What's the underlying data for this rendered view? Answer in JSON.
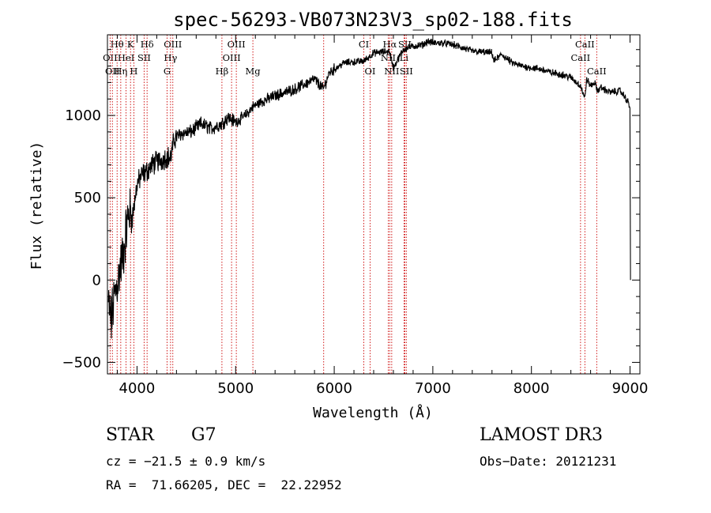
{
  "chart_data": {
    "type": "line",
    "title": "spec-56293-VB073N23V3_sp02-188.fits",
    "xlabel": "Wavelength (Å)",
    "ylabel": "Flux (relative)",
    "xlim": [
      3700,
      9100
    ],
    "ylim": [
      -570,
      1490
    ],
    "x_ticks": [
      4000,
      5000,
      6000,
      7000,
      8000,
      9000
    ],
    "y_ticks": [
      -500,
      0,
      500,
      1000
    ],
    "x_tick_labels": [
      "4000",
      "5000",
      "6000",
      "7000",
      "8000",
      "9000"
    ],
    "y_tick_labels": [
      "−500",
      "0",
      "500",
      "1000"
    ],
    "series": [
      {
        "name": "spectrum",
        "x": [
          3710,
          3740,
          3770,
          3800,
          3830,
          3860,
          3890,
          3920,
          3950,
          3970,
          4000,
          4050,
          4100,
          4150,
          4200,
          4250,
          4300,
          4340,
          4380,
          4450,
          4550,
          4650,
          4750,
          4860,
          4920,
          5000,
          5100,
          5170,
          5250,
          5400,
          5600,
          5800,
          5890,
          5950,
          6100,
          6300,
          6400,
          6560,
          6600,
          6700,
          6800,
          6900,
          6950,
          7000,
          7100,
          7200,
          7400,
          7600,
          7620,
          7700,
          7800,
          7900,
          8000,
          8100,
          8200,
          8300,
          8400,
          8500,
          8540,
          8560,
          8600,
          8640,
          8670,
          8700,
          8800,
          8900,
          8950,
          8980,
          9000,
          9005
        ],
        "values": [
          -150,
          -250,
          -100,
          -20,
          80,
          150,
          300,
          420,
          380,
          450,
          580,
          640,
          660,
          700,
          720,
          730,
          750,
          740,
          860,
          890,
          900,
          950,
          920,
          950,
          990,
          960,
          1000,
          1050,
          1080,
          1120,
          1160,
          1220,
          1160,
          1260,
          1320,
          1330,
          1380,
          1390,
          1290,
          1400,
          1420,
          1430,
          1450,
          1440,
          1440,
          1430,
          1390,
          1380,
          1330,
          1370,
          1320,
          1300,
          1290,
          1280,
          1260,
          1250,
          1230,
          1180,
          1100,
          1220,
          1180,
          1200,
          1150,
          1170,
          1140,
          1150,
          1110,
          1080,
          1050,
          0
        ]
      }
    ],
    "line_markers": [
      {
        "name": "Hθ",
        "wavelength": 3798,
        "label_row": 1
      },
      {
        "name": "K",
        "wavelength": 3934,
        "label_row": 1
      },
      {
        "name": "Hδ",
        "wavelength": 4102,
        "label_row": 1
      },
      {
        "name": "OIII",
        "wavelength": 4363,
        "label_row": 1
      },
      {
        "name": "OIII",
        "wavelength": 5007,
        "label_row": 1
      },
      {
        "name": "CI",
        "wavelength": 6300,
        "label_row": 1
      },
      {
        "name": "Hα",
        "wavelength": 6563,
        "label_row": 1
      },
      {
        "name": "SII",
        "wavelength": 6716,
        "label_row": 1
      },
      {
        "name": "CaII",
        "wavelength": 8542,
        "label_row": 1
      },
      {
        "name": "OII",
        "wavelength": 3727,
        "label_row": 2
      },
      {
        "name": "HeI",
        "wavelength": 3889,
        "label_row": 2
      },
      {
        "name": "SII",
        "wavelength": 4072,
        "label_row": 2
      },
      {
        "name": "Hγ",
        "wavelength": 4340,
        "label_row": 2
      },
      {
        "name": "OIII",
        "wavelength": 4959,
        "label_row": 2
      },
      {
        "name": "NII",
        "wavelength": 6548,
        "label_row": 2
      },
      {
        "name": "Li",
        "wavelength": 6708,
        "label_row": 2
      },
      {
        "name": "CaII",
        "wavelength": 8498,
        "label_row": 2
      },
      {
        "name": "OII",
        "wavelength": 3750,
        "label_row": 3
      },
      {
        "name": "Hη",
        "wavelength": 3835,
        "label_row": 3
      },
      {
        "name": "H",
        "wavelength": 3968,
        "label_row": 3
      },
      {
        "name": "G",
        "wavelength": 4305,
        "label_row": 3
      },
      {
        "name": "Hβ",
        "wavelength": 4861,
        "label_row": 3
      },
      {
        "name": "Mg",
        "wavelength": 5175,
        "label_row": 3
      },
      {
        "name": "OI",
        "wavelength": 6364,
        "label_row": 3
      },
      {
        "name": "NII",
        "wavelength": 6583,
        "label_row": 3
      },
      {
        "name": "SII",
        "wavelength": 6731,
        "label_row": 3
      },
      {
        "name": "CaII",
        "wavelength": 8662,
        "label_row": 3
      },
      {
        "name": "",
        "wavelength": 5893,
        "label_row": 0
      }
    ]
  },
  "info": {
    "object_class": "STAR",
    "subclass": "G7",
    "survey": "LAMOST DR3",
    "cz": "cz = −21.5 ± 0.9 km/s",
    "obs_date": "Obs−Date: 20121231",
    "coords": "RA =  71.66205, DEC =  22.22952"
  },
  "colors": {
    "spectrum": "#000000",
    "marker_line": "#cc0000",
    "axis": "#000000"
  }
}
